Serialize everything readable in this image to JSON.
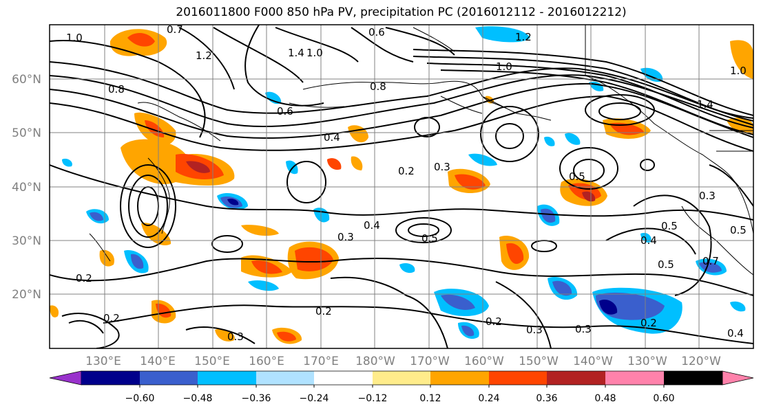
{
  "title": "2016011800 F000 850 hPa PV, precipitation PC (2016012112 - 2016012212)",
  "map": {
    "lon_labels": [
      "130°E",
      "140°E",
      "150°E",
      "160°E",
      "170°E",
      "180°W",
      "170°W",
      "160°W",
      "150°W",
      "140°W",
      "130°W",
      "120°W"
    ],
    "lat_labels": [
      "60°N",
      "50°N",
      "40°N",
      "30°N",
      "20°N"
    ],
    "pv_contour_labels": [
      "1.0",
      "0.7",
      "1.2",
      "1.4",
      "1.0",
      "0.6",
      "0.8",
      "0.6",
      "0.4",
      "0.2",
      "0.3",
      "0.2",
      "0.4",
      "0.5",
      "0.3",
      "0.2",
      "0.2",
      "0.3",
      "0.2",
      "0.3",
      "0.2",
      "0.4",
      "0.5",
      "0.5",
      "0.4",
      "0.5",
      "0.3",
      "1.2",
      "1.0",
      "1.4",
      "1.0",
      "0.8",
      "0.5",
      "0.7",
      "0.3"
    ],
    "label_color": "#808080"
  },
  "colorbar": {
    "tick_labels": [
      "−0.60",
      "−0.48",
      "−0.36",
      "−0.24",
      "−0.12",
      "0.12",
      "0.24",
      "0.36",
      "0.48",
      "0.60"
    ],
    "colors": [
      "#9932CC",
      "#00008B",
      "#3A5FCD",
      "#00BFFF",
      "#B0E2FF",
      "#FFFFFF",
      "#FFEC8B",
      "#FFA500",
      "#FF4500",
      "#B22222",
      "#FF82AB"
    ]
  }
}
